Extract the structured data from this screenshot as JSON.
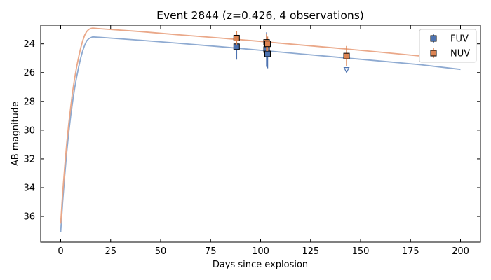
{
  "chart_data": {
    "type": "line",
    "title": "Event 2844 (z=0.426, 4 observations)",
    "xlabel": "Days since explosion",
    "ylabel": "AB magnitude",
    "xlim": [
      -10,
      210
    ],
    "ylim": [
      37.8,
      22.7
    ],
    "y_inverted": true,
    "xticks": [
      0,
      25,
      50,
      75,
      100,
      125,
      150,
      175,
      200
    ],
    "yticks": [
      24,
      26,
      28,
      30,
      32,
      34,
      36
    ],
    "grid": false,
    "legend_position": "top-right",
    "series": [
      {
        "name": "FUV",
        "color": "#4c72b0",
        "model_color": "#8eaad1",
        "model_curve": {
          "x": [
            0,
            1,
            2,
            3,
            4,
            5,
            6,
            7,
            8,
            9,
            10,
            11,
            12,
            13,
            14,
            15,
            16,
            20,
            40,
            60,
            80,
            100,
            120,
            140,
            160,
            180,
            200
          ],
          "y": [
            37.1,
            35.0,
            33.2,
            31.6,
            30.2,
            29.0,
            28.0,
            27.1,
            26.3,
            25.6,
            25.0,
            24.5,
            24.1,
            23.8,
            23.65,
            23.57,
            23.52,
            23.55,
            23.75,
            23.97,
            24.2,
            24.45,
            24.7,
            24.95,
            25.2,
            25.45,
            25.78
          ]
        },
        "observations": [
          {
            "x": 88,
            "y": 24.2,
            "yerr": 0.9
          },
          {
            "x": 103,
            "y": 24.4,
            "yerr": 1.2
          },
          {
            "x": 103.5,
            "y": 24.7,
            "yerr": 1.0
          }
        ],
        "upper_limits": [
          {
            "x": 143,
            "y": 25.8
          }
        ]
      },
      {
        "name": "NUV",
        "color": "#dd8452",
        "model_color": "#eaa889",
        "model_curve": {
          "x": [
            0,
            1,
            2,
            3,
            4,
            5,
            6,
            7,
            8,
            9,
            10,
            11,
            12,
            13,
            14,
            15,
            16,
            20,
            40,
            60,
            80,
            100,
            120,
            140,
            160,
            180,
            200
          ],
          "y": [
            36.5,
            34.4,
            32.6,
            31.0,
            29.6,
            28.4,
            27.3,
            26.4,
            25.6,
            24.9,
            24.3,
            23.8,
            23.4,
            23.15,
            23.0,
            22.93,
            22.9,
            22.95,
            23.15,
            23.38,
            23.6,
            23.83,
            24.08,
            24.32,
            24.58,
            24.85,
            25.25
          ]
        },
        "observations": [
          {
            "x": 88,
            "y": 23.6,
            "yerr": 0.5
          },
          {
            "x": 103,
            "y": 23.9,
            "yerr": 0.6
          },
          {
            "x": 103.5,
            "y": 24.0,
            "yerr": 0.5
          },
          {
            "x": 143,
            "y": 24.85,
            "yerr": 0.7
          }
        ],
        "upper_limits": []
      }
    ]
  }
}
